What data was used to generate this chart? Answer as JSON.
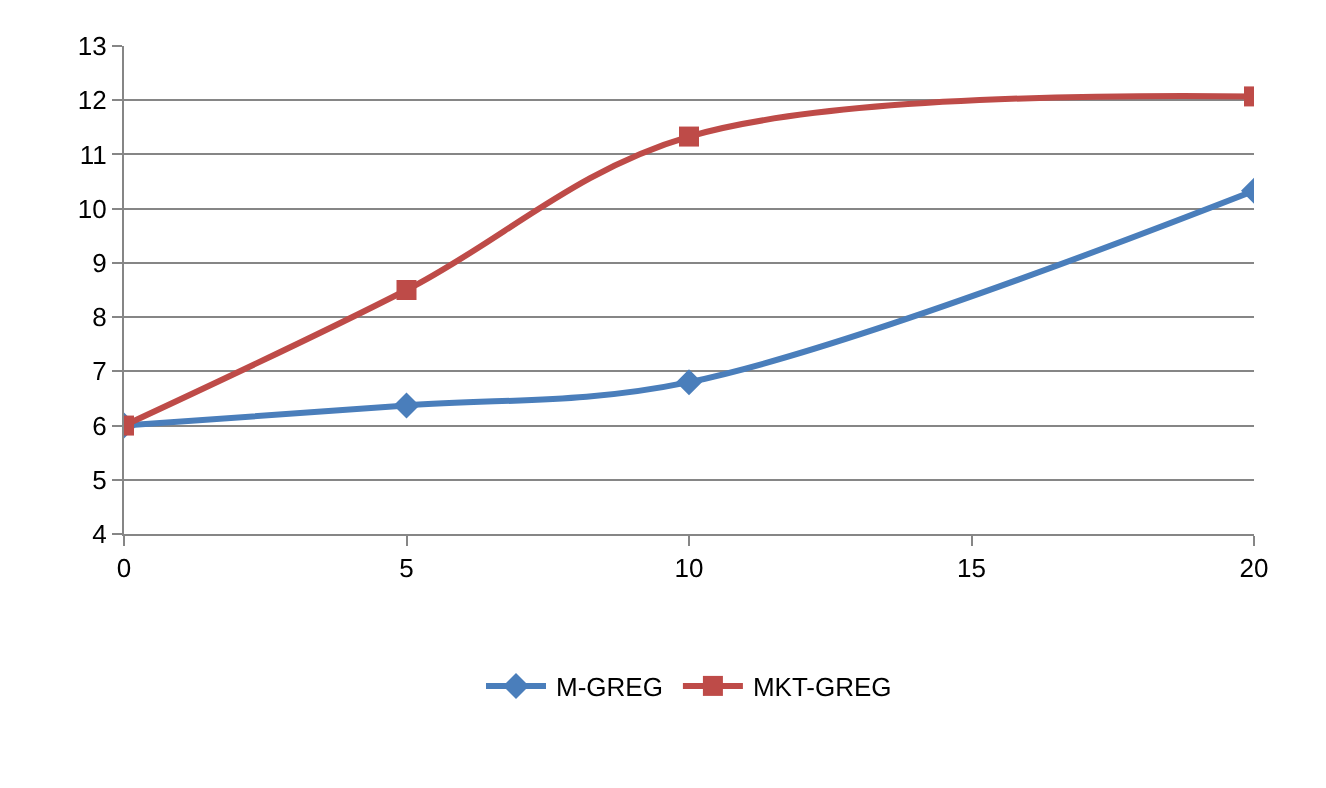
{
  "chart_data": {
    "type": "line",
    "x": [
      0,
      5,
      10,
      20
    ],
    "series": [
      {
        "name": "M-GREG",
        "color": "#4a7ebb",
        "marker": "diamond",
        "values": [
          6,
          6.37,
          6.8,
          10.33
        ]
      },
      {
        "name": "MKT-GREG",
        "color": "#be4b48",
        "marker": "square",
        "values": [
          6,
          8.5,
          11.33,
          12.07
        ]
      }
    ],
    "xlim": [
      0,
      20
    ],
    "xticks": [
      0,
      5,
      10,
      15,
      20
    ],
    "ylim": [
      4,
      13
    ],
    "yticks": [
      4,
      5,
      6,
      7,
      8,
      9,
      10,
      11,
      12,
      13
    ],
    "grid": "y",
    "legend": "bottom",
    "line_style": "solid"
  }
}
